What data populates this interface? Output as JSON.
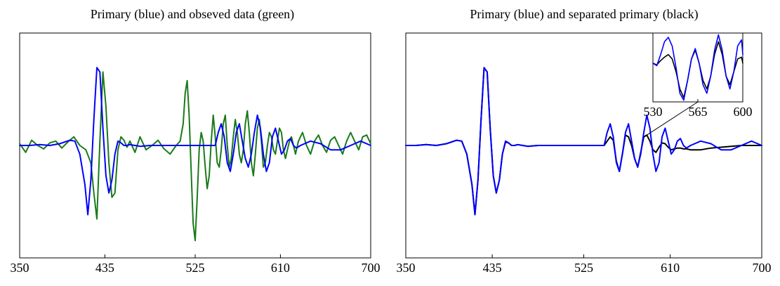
{
  "chart_data": [
    {
      "type": "line",
      "title": "Primary (blue) and obseved data (green)",
      "xlabel": "",
      "ylabel": "",
      "xlim": [
        350,
        700
      ],
      "ylim": [
        -1.3,
        1.3
      ],
      "x_ticks": [
        350,
        435,
        525,
        610,
        700
      ],
      "tick_labels": [
        "350",
        "435",
        "525",
        "610",
        "700"
      ],
      "grid": false,
      "series": [
        {
          "color": "#1a7a1a",
          "x": [
            350,
            356,
            362,
            368,
            374,
            380,
            386,
            392,
            398,
            404,
            410,
            416,
            421,
            424,
            427,
            430,
            433,
            436,
            439,
            442,
            445,
            448,
            451,
            454,
            457,
            460,
            465,
            470,
            476,
            482,
            488,
            494,
            500,
            506,
            510,
            513,
            515,
            517,
            519,
            521,
            523,
            525,
            527,
            529,
            531,
            533,
            535,
            537,
            539,
            541,
            543,
            545,
            547,
            549,
            551,
            553,
            555,
            557,
            559,
            561,
            563,
            565,
            567,
            569,
            571,
            573,
            575,
            577,
            579,
            581,
            583,
            585,
            587,
            589,
            591,
            593,
            595,
            597,
            599,
            601,
            603,
            605,
            607,
            609,
            611,
            613,
            615,
            617,
            619,
            621,
            623,
            625,
            628,
            632,
            636,
            640,
            644,
            648,
            652,
            656,
            660,
            664,
            668,
            672,
            676,
            680,
            684,
            688,
            692,
            696,
            700
          ],
          "y": [
            0.02,
            -0.08,
            0.06,
            0.0,
            -0.04,
            0.03,
            0.05,
            -0.03,
            0.04,
            0.1,
            0.0,
            -0.05,
            -0.2,
            -0.55,
            -0.85,
            0.05,
            0.85,
            0.45,
            -0.2,
            -0.6,
            -0.55,
            -0.05,
            0.1,
            0.06,
            -0.02,
            0.05,
            -0.08,
            0.1,
            -0.05,
            0.0,
            0.06,
            -0.04,
            -0.1,
            0.0,
            0.05,
            0.25,
            0.6,
            0.75,
            0.35,
            -0.3,
            -0.9,
            -1.1,
            -0.6,
            -0.05,
            0.15,
            0.05,
            -0.25,
            -0.5,
            -0.35,
            0.05,
            0.35,
            0.1,
            -0.2,
            -0.25,
            -0.05,
            0.25,
            0.35,
            0.0,
            -0.25,
            -0.15,
            0.1,
            0.3,
            0.15,
            -0.1,
            -0.2,
            -0.05,
            0.25,
            0.4,
            0.15,
            -0.2,
            -0.35,
            -0.1,
            0.2,
            0.3,
            0.05,
            -0.25,
            -0.2,
            0.0,
            0.15,
            0.1,
            -0.05,
            -0.1,
            0.05,
            0.2,
            0.15,
            -0.05,
            -0.15,
            -0.05,
            0.05,
            0.1,
            0.0,
            -0.1,
            0.05,
            0.15,
            0.0,
            -0.1,
            0.05,
            0.12,
            0.0,
            -0.08,
            0.06,
            0.1,
            0.0,
            -0.1,
            0.05,
            0.15,
            0.05,
            -0.05,
            0.1,
            0.12,
            0.02
          ]
        },
        {
          "color": "#0000ff",
          "x": [
            350,
            360,
            370,
            380,
            390,
            400,
            405,
            410,
            415,
            418,
            421,
            424,
            427,
            430,
            433,
            436,
            439,
            442,
            445,
            448,
            451,
            454,
            457,
            460,
            465,
            470,
            480,
            490,
            500,
            510,
            520,
            530,
            540,
            545,
            548,
            551,
            554,
            557,
            560,
            563,
            566,
            569,
            572,
            575,
            578,
            581,
            584,
            587,
            590,
            593,
            596,
            599,
            602,
            605,
            608,
            611,
            614,
            617,
            620,
            623,
            626,
            630,
            640,
            650,
            660,
            670,
            680,
            690,
            700
          ],
          "y": [
            0.0,
            0.0,
            0.01,
            0.0,
            0.02,
            0.06,
            0.05,
            -0.1,
            -0.45,
            -0.8,
            -0.4,
            0.3,
            0.9,
            0.85,
            0.2,
            -0.35,
            -0.55,
            -0.4,
            -0.1,
            0.05,
            0.03,
            0.0,
            0.0,
            0.01,
            0.0,
            -0.01,
            0.0,
            0.0,
            0.0,
            0.0,
            0.0,
            0.0,
            0.0,
            0.0,
            0.15,
            0.25,
            0.1,
            -0.2,
            -0.3,
            -0.1,
            0.15,
            0.25,
            0.05,
            -0.15,
            -0.25,
            -0.1,
            0.15,
            0.35,
            0.2,
            -0.1,
            -0.3,
            -0.2,
            0.1,
            0.2,
            0.05,
            -0.1,
            -0.05,
            0.05,
            0.08,
            0.0,
            -0.03,
            0.0,
            0.05,
            0.02,
            -0.05,
            -0.05,
            0.0,
            0.05,
            0.0
          ]
        }
      ]
    },
    {
      "type": "line",
      "title": "Primary (blue) and separated primary (black)",
      "xlabel": "",
      "ylabel": "",
      "xlim": [
        350,
        700
      ],
      "ylim": [
        -1.3,
        1.3
      ],
      "x_ticks": [
        350,
        435,
        525,
        610,
        700
      ],
      "tick_labels": [
        "350",
        "435",
        "525",
        "610",
        "700"
      ],
      "grid": false,
      "series": [
        {
          "color": "#000000",
          "x": [
            350,
            360,
            370,
            380,
            390,
            400,
            405,
            410,
            415,
            418,
            421,
            424,
            427,
            430,
            433,
            436,
            439,
            442,
            445,
            448,
            451,
            454,
            457,
            460,
            465,
            470,
            480,
            490,
            500,
            510,
            520,
            530,
            540,
            545,
            548,
            551,
            554,
            557,
            560,
            563,
            566,
            569,
            572,
            575,
            578,
            581,
            584,
            587,
            590,
            593,
            596,
            599,
            602,
            605,
            608,
            611,
            614,
            617,
            620,
            623,
            626,
            630,
            640,
            650,
            660,
            670,
            680,
            690,
            700
          ],
          "y": [
            0.0,
            0.0,
            0.01,
            0.0,
            0.02,
            0.06,
            0.05,
            -0.1,
            -0.45,
            -0.8,
            -0.4,
            0.3,
            0.9,
            0.85,
            0.2,
            -0.35,
            -0.55,
            -0.4,
            -0.1,
            0.04,
            0.03,
            0.0,
            0.0,
            0.01,
            0.0,
            -0.01,
            0.0,
            0.0,
            0.0,
            0.0,
            0.0,
            0.0,
            0.0,
            0.0,
            0.05,
            0.1,
            0.06,
            -0.18,
            -0.3,
            -0.1,
            0.12,
            0.1,
            0.0,
            -0.15,
            -0.25,
            -0.08,
            0.1,
            0.12,
            0.05,
            -0.05,
            -0.08,
            -0.02,
            0.03,
            0.02,
            -0.02,
            -0.05,
            -0.04,
            -0.03,
            -0.03,
            -0.04,
            -0.04,
            -0.05,
            -0.05,
            -0.03,
            -0.02,
            -0.01,
            0.0,
            0.0,
            0.0
          ]
        },
        {
          "color": "#0000ff",
          "x": [
            350,
            360,
            370,
            380,
            390,
            400,
            405,
            410,
            415,
            418,
            421,
            424,
            427,
            430,
            433,
            436,
            439,
            442,
            445,
            448,
            451,
            454,
            457,
            460,
            465,
            470,
            480,
            490,
            500,
            510,
            520,
            530,
            540,
            545,
            548,
            551,
            554,
            557,
            560,
            563,
            566,
            569,
            572,
            575,
            578,
            581,
            584,
            587,
            590,
            593,
            596,
            599,
            602,
            605,
            608,
            611,
            614,
            617,
            620,
            623,
            626,
            630,
            640,
            650,
            660,
            670,
            680,
            690,
            700
          ],
          "y": [
            0.0,
            0.0,
            0.01,
            0.0,
            0.02,
            0.06,
            0.05,
            -0.1,
            -0.45,
            -0.8,
            -0.4,
            0.3,
            0.9,
            0.85,
            0.2,
            -0.35,
            -0.55,
            -0.4,
            -0.1,
            0.05,
            0.03,
            0.0,
            0.0,
            0.01,
            0.0,
            -0.01,
            0.0,
            0.0,
            0.0,
            0.0,
            0.0,
            0.0,
            0.0,
            0.0,
            0.15,
            0.25,
            0.1,
            -0.2,
            -0.3,
            -0.1,
            0.15,
            0.25,
            0.05,
            -0.15,
            -0.25,
            -0.1,
            0.15,
            0.35,
            0.2,
            -0.1,
            -0.3,
            -0.2,
            0.1,
            0.2,
            0.05,
            -0.1,
            -0.05,
            0.05,
            0.08,
            0.0,
            -0.03,
            0.0,
            0.05,
            0.02,
            -0.05,
            -0.05,
            0.0,
            0.05,
            0.0
          ]
        }
      ],
      "inset": {
        "xlim": [
          530,
          600
        ],
        "ylim": [
          -0.4,
          0.4
        ],
        "x_ticks": [
          530,
          565,
          600
        ],
        "tick_labels": [
          "530",
          "565",
          "600"
        ],
        "pointer_to": [
          587,
          0.12
        ],
        "series": [
          {
            "color": "#000000",
            "x": [
              530,
              533,
              536,
              539,
              542,
              545,
              548,
              551,
              554,
              557,
              560,
              563,
              566,
              569,
              572,
              575,
              578,
              581,
              584,
              587,
              590,
              593,
              596,
              599,
              600
            ],
            "y": [
              0.05,
              0.03,
              0.08,
              0.12,
              0.15,
              0.1,
              -0.05,
              -0.25,
              -0.35,
              -0.15,
              0.1,
              0.2,
              0.05,
              -0.15,
              -0.25,
              -0.1,
              0.15,
              0.3,
              0.15,
              -0.1,
              -0.2,
              -0.05,
              0.1,
              0.12,
              0.05
            ]
          },
          {
            "color": "#0000ff",
            "x": [
              530,
              533,
              536,
              539,
              542,
              545,
              548,
              551,
              554,
              557,
              560,
              563,
              566,
              569,
              572,
              575,
              578,
              581,
              584,
              587,
              590,
              593,
              596,
              599,
              600
            ],
            "y": [
              0.05,
              0.02,
              0.15,
              0.3,
              0.35,
              0.25,
              0.0,
              -0.3,
              -0.38,
              -0.15,
              0.1,
              0.22,
              0.05,
              -0.2,
              -0.3,
              -0.1,
              0.2,
              0.38,
              0.2,
              -0.1,
              -0.25,
              -0.05,
              0.25,
              0.32,
              0.15
            ]
          }
        ]
      }
    }
  ]
}
